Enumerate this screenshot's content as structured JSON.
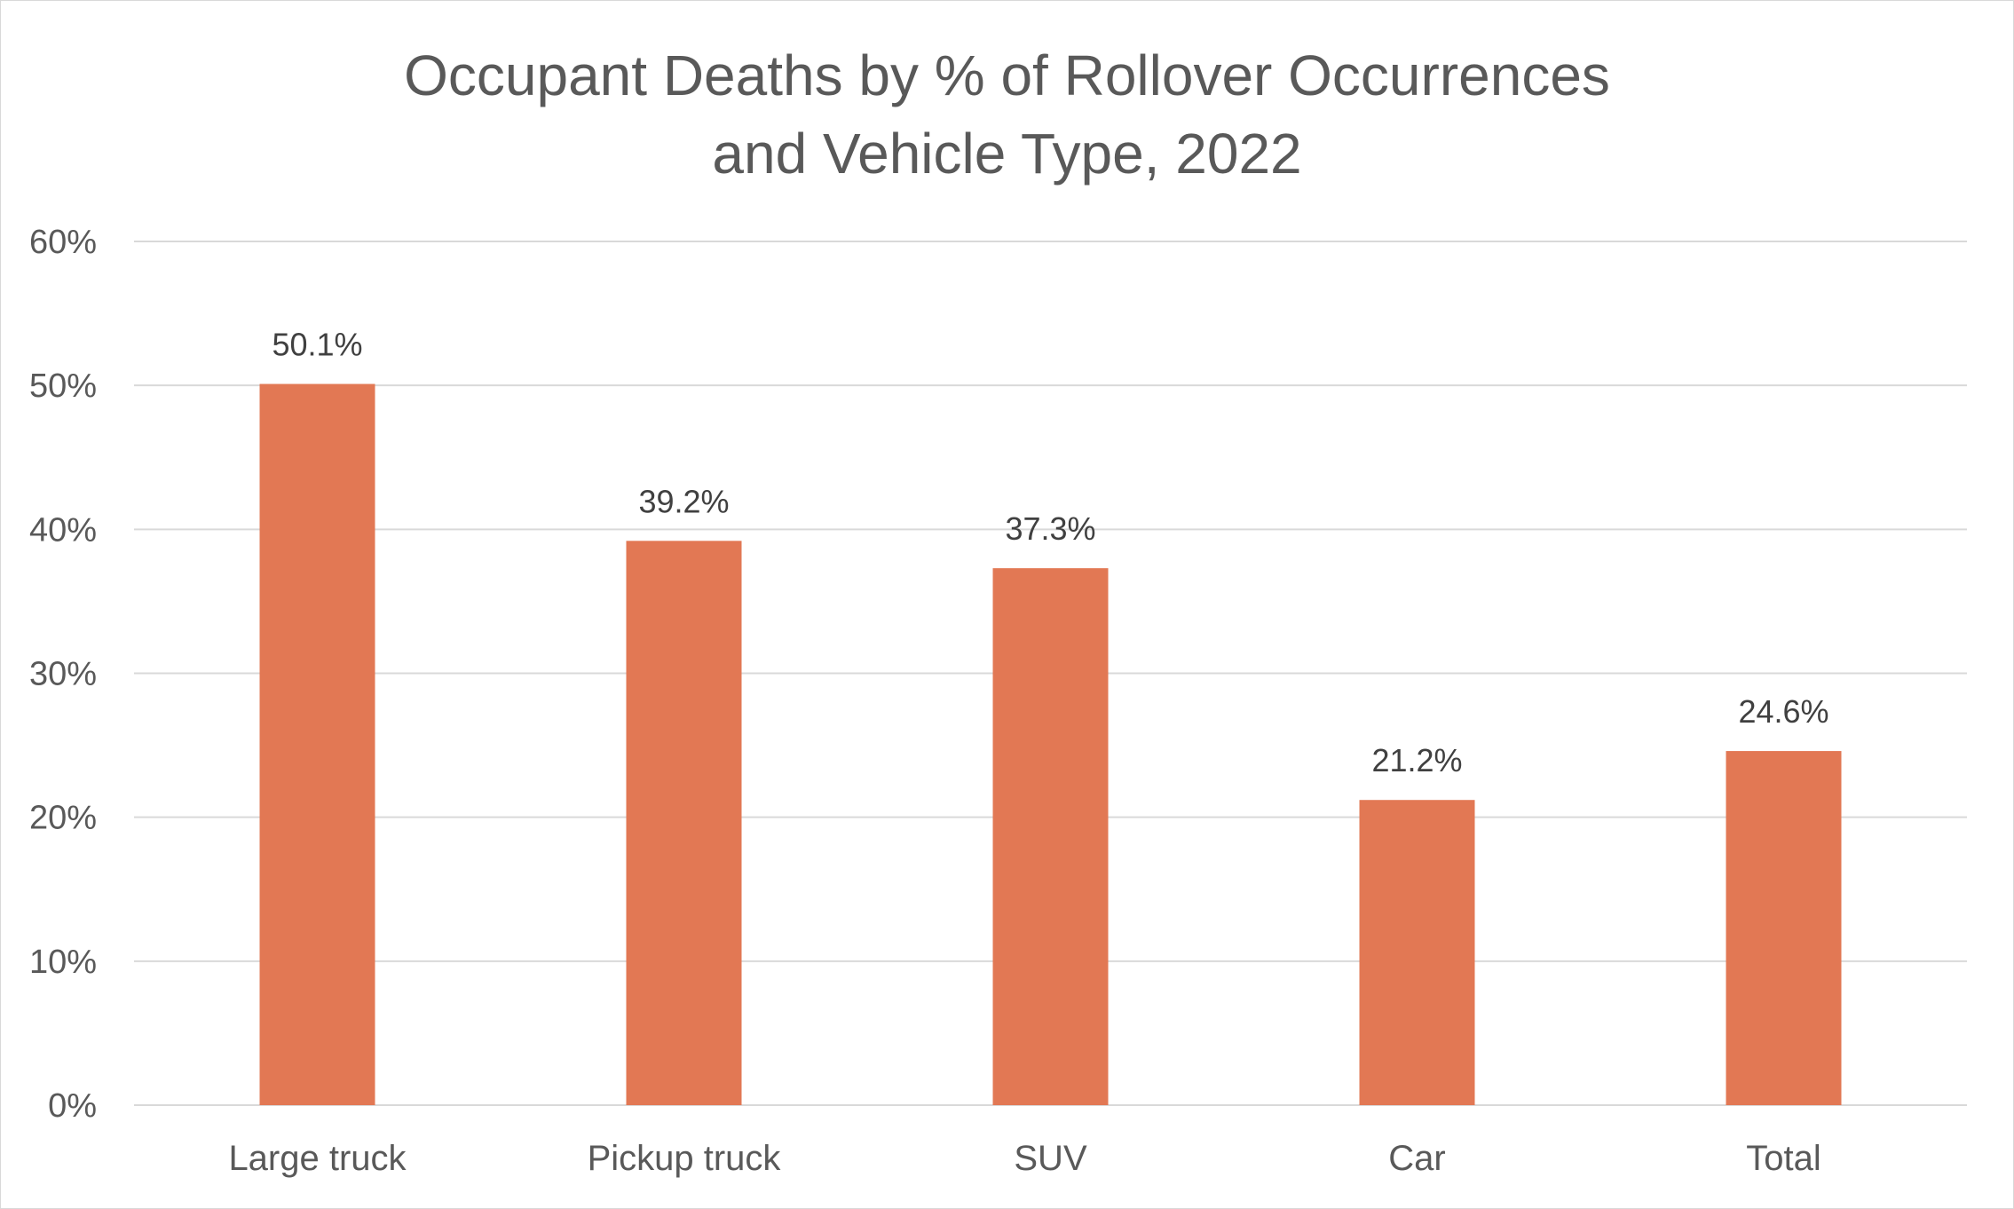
{
  "chart_data": {
    "type": "bar",
    "title_lines": [
      "Occupant Deaths by % of Rollover Occurrences",
      "and Vehicle Type, 2022"
    ],
    "xlabel": "",
    "ylabel": "",
    "categories": [
      "Large truck",
      "Pickup truck",
      "SUV",
      "Car",
      "Total"
    ],
    "series": [
      {
        "values": [
          50.1,
          39.2,
          37.3,
          21.2,
          24.6
        ],
        "labels": [
          "50.1%",
          "39.2%",
          "37.3%",
          "21.2%",
          "24.6%"
        ],
        "color": "#e27854"
      }
    ],
    "ylim": [
      0,
      60
    ],
    "yticks": [
      0,
      10,
      20,
      30,
      40,
      50,
      60
    ],
    "ytick_labels": [
      "0%",
      "10%",
      "20%",
      "30%",
      "40%",
      "50%",
      "60%"
    ],
    "grid": true,
    "gridline_color": "#d9d9d9",
    "legend": "none"
  }
}
